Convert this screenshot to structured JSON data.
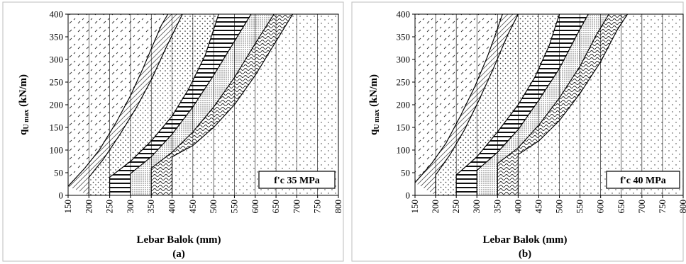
{
  "chart_data": [
    {
      "type": "area",
      "panel": "(a)",
      "note": "f'c 35 MPa",
      "xlabel": "Lebar Balok (mm)",
      "ylabel_main": "q",
      "ylabel_sub": "U max",
      "ylabel_unit": " (kN/m)",
      "xlim": [
        150,
        800
      ],
      "ylim": [
        0,
        400
      ],
      "xticks": [
        150,
        200,
        250,
        300,
        350,
        400,
        450,
        500,
        550,
        600,
        650,
        700,
        750,
        800
      ],
      "yticks": [
        0,
        50,
        100,
        150,
        200,
        250,
        300,
        350,
        400
      ],
      "grid": "vertical",
      "zone_patterns": [
        "diagonal-dash",
        "diagonal-hatch",
        "sparse-dots",
        "horizontal-lines",
        "dense-dots",
        "waves",
        "fine-dots"
      ],
      "boundaries": [
        {
          "x": [
            150,
            190,
            225,
            265,
            300,
            330,
            353,
            374,
            390
          ],
          "y": [
            20,
            60,
            100,
            160,
            220,
            280,
            330,
            375,
            400
          ]
        },
        {
          "x": [
            200,
            235,
            275,
            315,
            350,
            385,
            425
          ],
          "start": 40,
          "y": [
            40,
            80,
            135,
            195,
            255,
            325,
            400
          ]
        },
        {
          "x": [
            250,
            300,
            350,
            400,
            440,
            480,
            512
          ],
          "start": 40,
          "y": [
            40,
            75,
            120,
            175,
            235,
            310,
            400
          ]
        },
        {
          "x": [
            300,
            350,
            400,
            450,
            500,
            550,
            590
          ],
          "start": 48,
          "y": [
            48,
            85,
            135,
            195,
            265,
            340,
            400
          ]
        },
        {
          "x": [
            350,
            400,
            450,
            500,
            550,
            600,
            645
          ],
          "start": 60,
          "y": [
            60,
            95,
            140,
            195,
            260,
            335,
            400
          ]
        },
        {
          "x": [
            400,
            450,
            500,
            550,
            600,
            650,
            690
          ],
          "start": 85,
          "y": [
            85,
            110,
            150,
            200,
            265,
            340,
            400
          ]
        }
      ]
    },
    {
      "type": "area",
      "panel": "(b)",
      "note": "f'c 40 MPa",
      "xlabel": "Lebar Balok (mm)",
      "ylabel_main": "q",
      "ylabel_sub": "U max",
      "ylabel_unit": " (kN/m)",
      "xlim": [
        150,
        800
      ],
      "ylim": [
        0,
        400
      ],
      "xticks": [
        150,
        200,
        250,
        300,
        350,
        400,
        450,
        500,
        550,
        600,
        650,
        700,
        750,
        800
      ],
      "yticks": [
        0,
        50,
        100,
        150,
        200,
        250,
        300,
        350,
        400
      ],
      "grid": "vertical",
      "zone_patterns": [
        "diagonal-dash",
        "diagonal-hatch",
        "sparse-dots",
        "horizontal-lines",
        "dense-dots",
        "waves",
        "fine-dots"
      ],
      "boundaries": [
        {
          "x": [
            150,
            190,
            225,
            260,
            295,
            325,
            345,
            362
          ],
          "y": [
            28,
            70,
            115,
            175,
            240,
            305,
            355,
            400
          ]
        },
        {
          "x": [
            200,
            235,
            270,
            305,
            340,
            375,
            400
          ],
          "start": 45,
          "y": [
            45,
            90,
            145,
            210,
            280,
            355,
            400
          ]
        },
        {
          "x": [
            250,
            300,
            350,
            400,
            440,
            475,
            500
          ],
          "start": 45,
          "y": [
            45,
            85,
            140,
            200,
            260,
            330,
            400
          ]
        },
        {
          "x": [
            300,
            350,
            400,
            450,
            500,
            540,
            570
          ],
          "start": 55,
          "y": [
            55,
            95,
            145,
            210,
            280,
            350,
            400
          ]
        },
        {
          "x": [
            350,
            400,
            450,
            500,
            550,
            590,
            620
          ],
          "start": 70,
          "y": [
            70,
            105,
            155,
            215,
            285,
            355,
            400
          ]
        },
        {
          "x": [
            400,
            450,
            500,
            550,
            600,
            640,
            665
          ],
          "start": 90,
          "y": [
            90,
            120,
            165,
            225,
            295,
            365,
            400
          ]
        }
      ]
    }
  ]
}
